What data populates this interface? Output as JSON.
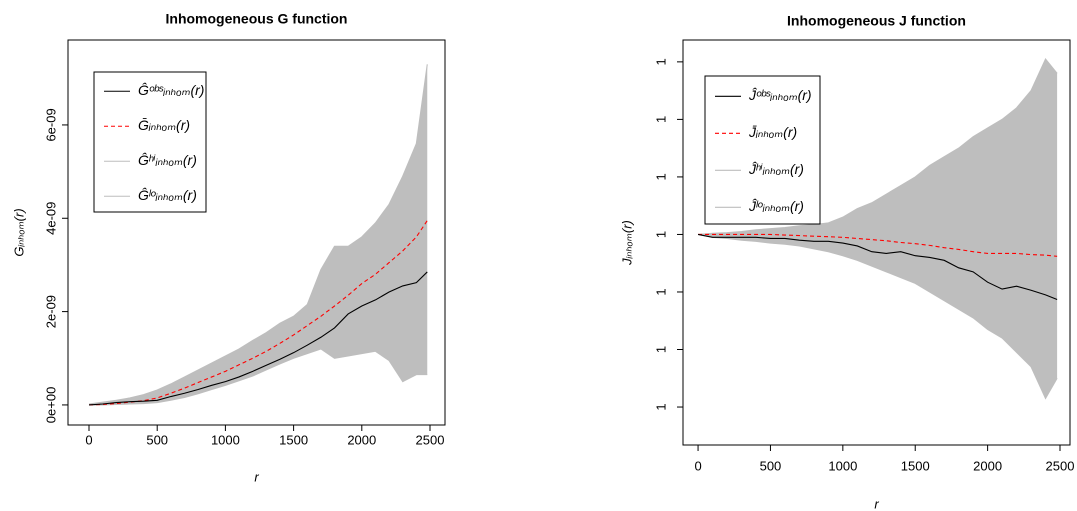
{
  "chart_data": [
    {
      "type": "line",
      "title": "Inhomogeneous G function",
      "xlabel": "r",
      "ylabel": "Gᵢₙₕₒₘ(r)",
      "x": [
        0,
        100,
        200,
        300,
        400,
        500,
        600,
        700,
        800,
        900,
        1000,
        1100,
        1200,
        1300,
        1400,
        1500,
        1600,
        1700,
        1800,
        1900,
        2000,
        2100,
        2200,
        2300,
        2400,
        2480
      ],
      "xlim": [
        -154,
        2610
      ],
      "xticks": [
        0,
        500,
        1000,
        1500,
        2000,
        2500
      ],
      "ylim": [
        -4.3e-10,
        7.82e-09
      ],
      "yticks": [
        {
          "value": 0,
          "label": "0e+00"
        },
        {
          "value": 2e-09,
          "label": "2e-09"
        },
        {
          "value": 4e-09,
          "label": "4e-09"
        },
        {
          "value": 6e-09,
          "label": "6e-09"
        }
      ],
      "band_color": "#bebebe",
      "series": [
        {
          "name": "Ĝᵒᵇˢᵢₙₕₒₘ(r)",
          "color": "#000000",
          "linestyle": "solid",
          "values": [
            0,
            2e-11,
            5e-11,
            7e-11,
            8e-11,
            1e-10,
            1.8e-10,
            2.5e-10,
            3.3e-10,
            4.2e-10,
            5e-10,
            6e-10,
            7.2e-10,
            8.5e-10,
            9.8e-10,
            1.12e-09,
            1.28e-09,
            1.45e-09,
            1.65e-09,
            1.95e-09,
            2.12e-09,
            2.25e-09,
            2.42e-09,
            2.55e-09,
            2.62e-09,
            2.85e-09
          ]
        },
        {
          "name": "Ḡᵢₙₕₒₘ(r)",
          "color": "#ff0000",
          "linestyle": "dashed",
          "values": [
            0,
            1e-11,
            3e-11,
            6e-11,
            9e-11,
            1.5e-10,
            2.5e-10,
            3.6e-10,
            4.8e-10,
            6e-10,
            7.2e-10,
            8.6e-10,
            1e-09,
            1.15e-09,
            1.32e-09,
            1.5e-09,
            1.7e-09,
            1.9e-09,
            2.12e-09,
            2.35e-09,
            2.6e-09,
            2.8e-09,
            3.05e-09,
            3.3e-09,
            3.6e-09,
            3.95e-09
          ]
        },
        {
          "name": "Ĝʰⁱᵢₙₕₒₘ(r)",
          "color": "#bebebe",
          "linestyle": "solid",
          "values": [
            2e-11,
            6e-11,
            1e-10,
            1.5e-10,
            2.2e-10,
            3.2e-10,
            4.5e-10,
            6e-10,
            7.5e-10,
            9e-10,
            1.05e-09,
            1.2e-09,
            1.38e-09,
            1.55e-09,
            1.75e-09,
            1.9e-09,
            2.15e-09,
            2.9e-09,
            3.4e-09,
            3.4e-09,
            3.6e-09,
            3.9e-09,
            4.3e-09,
            4.9e-09,
            5.6e-09,
            7.3e-09
          ]
        },
        {
          "name": "Ĝˡᵒᵢₙₕₒₘ(r)",
          "color": "#bebebe",
          "linestyle": "solid",
          "values": [
            0,
            0,
            1e-11,
            2e-11,
            3e-11,
            5e-11,
            1e-10,
            1.6e-10,
            2.4e-10,
            3.3e-10,
            4.2e-10,
            5.2e-10,
            6.2e-10,
            7.5e-10,
            8.8e-10,
            1e-09,
            1.1e-09,
            1.2e-09,
            1e-09,
            1.05e-09,
            1.1e-09,
            1.15e-09,
            9.5e-10,
            5e-10,
            6.5e-10,
            6.5e-10
          ]
        }
      ]
    },
    {
      "type": "line",
      "title": "Inhomogeneous J function",
      "xlabel": "r",
      "ylabel": "Jᵢₙₕₒₘ(r)",
      "x": [
        0,
        100,
        200,
        300,
        400,
        500,
        600,
        700,
        800,
        900,
        1000,
        1100,
        1200,
        1300,
        1400,
        1500,
        1600,
        1700,
        1800,
        1900,
        2000,
        2100,
        2200,
        2300,
        2400,
        2480
      ],
      "xlim": [
        -104,
        2569
      ],
      "xticks": [
        0,
        500,
        1000,
        1500,
        2000,
        2500
      ],
      "ylim": [
        0.9634,
        1.0338
      ],
      "yticks": [
        {
          "value": 0.97,
          "label": "1"
        },
        {
          "value": 0.98,
          "label": "1"
        },
        {
          "value": 0.99,
          "label": "1"
        },
        {
          "value": 1.0,
          "label": "1"
        },
        {
          "value": 1.01,
          "label": "1"
        },
        {
          "value": 1.02,
          "label": "1"
        },
        {
          "value": 1.03,
          "label": "1"
        }
      ],
      "band_color": "#bebebe",
      "series": [
        {
          "name": "Ĵᵒᵇˢᵢₙₕₒₘ(r)",
          "color": "#000000",
          "linestyle": "solid",
          "values": [
            1.0,
            0.9995,
            0.9995,
            0.9995,
            0.9995,
            0.9993,
            0.9993,
            0.999,
            0.9988,
            0.9988,
            0.9985,
            0.998,
            0.997,
            0.9967,
            0.997,
            0.9963,
            0.996,
            0.9955,
            0.9942,
            0.9935,
            0.9917,
            0.9905,
            0.991,
            0.9903,
            0.9895,
            0.9887
          ]
        },
        {
          "name": "J̄ᵢₙₕₒₘ(r)",
          "color": "#ff0000",
          "linestyle": "dashed",
          "values": [
            1.0,
            1.0,
            1.0,
            1.0,
            1.0,
            1.0,
            0.9999,
            0.9998,
            0.9997,
            0.9996,
            0.9995,
            0.9993,
            0.9991,
            0.9989,
            0.9986,
            0.9984,
            0.9981,
            0.9977,
            0.9974,
            0.997,
            0.9967,
            0.9967,
            0.9967,
            0.9965,
            0.9964,
            0.9962
          ]
        },
        {
          "name": "Ĵʰⁱᵢₙₕₒₘ(r)",
          "color": "#bebebe",
          "linestyle": "solid",
          "values": [
            1.0,
            1.0002,
            1.0003,
            1.0005,
            1.0008,
            1.001,
            1.0012,
            1.0015,
            1.0017,
            1.002,
            1.003,
            1.0045,
            1.0055,
            1.007,
            1.0085,
            1.01,
            1.012,
            1.0135,
            1.015,
            1.017,
            1.0185,
            1.02,
            1.022,
            1.025,
            1.0305,
            1.028
          ]
        },
        {
          "name": "Ĵˡᵒᵢₙₕₒₘ(r)",
          "color": "#bebebe",
          "linestyle": "solid",
          "values": [
            1.0,
            0.9995,
            0.9993,
            0.999,
            0.9988,
            0.9985,
            0.9983,
            0.998,
            0.9975,
            0.997,
            0.9963,
            0.9955,
            0.9945,
            0.9935,
            0.9925,
            0.9915,
            0.99,
            0.9885,
            0.987,
            0.9855,
            0.9835,
            0.982,
            0.9795,
            0.977,
            0.9715,
            0.975
          ]
        }
      ]
    }
  ]
}
